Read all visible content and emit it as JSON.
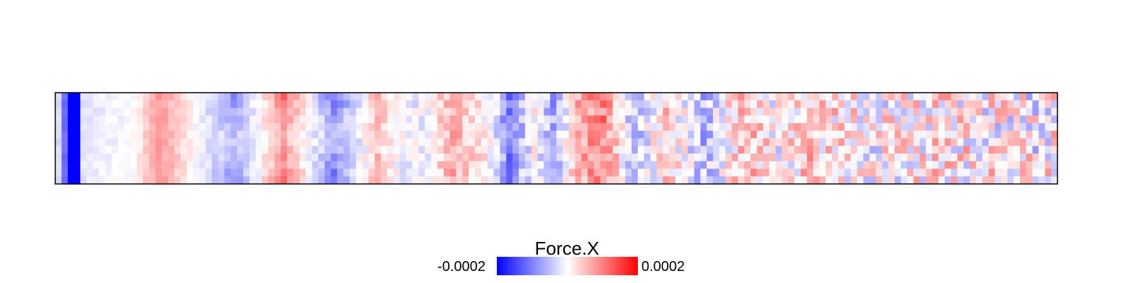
{
  "chart_data": {
    "type": "heatmap",
    "grid": {
      "columns": 160,
      "rows": 12
    },
    "fill_variable": "Force.X",
    "color_scale": {
      "low_color": "#0000ff",
      "mid_color": "#ffffff",
      "high_color": "#ff0000",
      "low_label": "-0.0002",
      "high_label": "0.0002",
      "limits": [
        -0.0002,
        0.0002
      ]
    },
    "legend": {
      "title": "Force.X",
      "position": "bottom"
    },
    "column_profile": [
      {
        "col": 0,
        "value": -3e-05
      },
      {
        "col": 2,
        "value": -0.0002
      },
      {
        "col": 4,
        "value": -2e-05
      },
      {
        "col": 12,
        "value": 0.0
      },
      {
        "col": 16,
        "value": 8e-05
      },
      {
        "col": 22,
        "value": 0.0
      },
      {
        "col": 28,
        "value": -8e-05
      },
      {
        "col": 32,
        "value": 0.0
      },
      {
        "col": 36,
        "value": 0.0001
      },
      {
        "col": 40,
        "value": 0.0
      },
      {
        "col": 44,
        "value": -0.0001
      },
      {
        "col": 49,
        "value": 0.0
      },
      {
        "col": 51,
        "value": 6e-05
      },
      {
        "col": 54,
        "value": 0.0
      },
      {
        "col": 56,
        "value": -2e-05
      },
      {
        "col": 59,
        "value": 0.0
      },
      {
        "col": 63,
        "value": 7e-05
      },
      {
        "col": 69,
        "value": 0.0
      },
      {
        "col": 72,
        "value": -0.0001
      },
      {
        "col": 76,
        "value": 0.0
      },
      {
        "col": 79,
        "value": -7e-05
      },
      {
        "col": 83,
        "value": 6e-05
      },
      {
        "col": 87,
        "value": 0.0001
      },
      {
        "col": 92,
        "value": -6e-05
      },
      {
        "col": 97,
        "value": 4e-05
      },
      {
        "col": 103,
        "value": -5e-05
      },
      {
        "col": 110,
        "value": 5e-05
      },
      {
        "col": 115,
        "value": 0.0
      },
      {
        "col": 120,
        "value": 4e-05
      },
      {
        "col": 130,
        "value": 0.0
      },
      {
        "col": 140,
        "value": 2e-05
      },
      {
        "col": 159,
        "value": 0.0
      }
    ]
  }
}
